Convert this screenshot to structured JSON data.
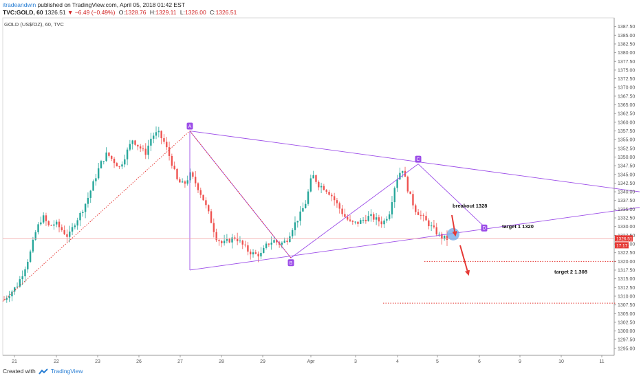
{
  "header": {
    "author": "itradeandwin",
    "published": "published on TradingView.com, April 05, 2018 01:42 EST",
    "symbol": "TVC:GOLD, 60",
    "last": "1326.51",
    "change": "▼ −6.49 (−0.49%)",
    "o_label": "O:",
    "o": "1328.76",
    "h_label": "H:",
    "h": "1329.11",
    "l_label": "L:",
    "l": "1326.00",
    "c_label": "C:",
    "c": "1326.51"
  },
  "legend": "GOLD (US$/OZ), 60, TVC",
  "footer": {
    "created": "Created with",
    "brand": "TradingView"
  },
  "colors": {
    "up": "#26a69a",
    "down": "#ef5350",
    "pattern": "#9c4de8",
    "target": "#e53935",
    "price": "#e53935"
  },
  "chart_data": {
    "type": "candlestick",
    "title": "GOLD (US$/OZ), 60, TVC",
    "y_axis": {
      "range": [
        1293,
        1390
      ],
      "ticks": [
        1295.0,
        1297.5,
        1300.0,
        1302.5,
        1305.0,
        1307.5,
        1310.0,
        1312.5,
        1315.0,
        1317.5,
        1320.0,
        1322.5,
        1325.0,
        1327.5,
        1330.0,
        1332.5,
        1335.0,
        1337.5,
        1340.0,
        1342.5,
        1345.0,
        1347.5,
        1350.0,
        1352.5,
        1355.0,
        1357.5,
        1360.0,
        1362.5,
        1365.0,
        1367.5,
        1370.0,
        1372.5,
        1375.0,
        1377.5,
        1380.0,
        1382.5,
        1385.0,
        1387.5
      ],
      "current_price": "1326.51",
      "countdown": "17:17"
    },
    "x_axis": {
      "ticks": [
        "21",
        "22",
        "23",
        "26",
        "27",
        "28",
        "29",
        "Apr",
        "3",
        "4",
        "5",
        "6",
        "9",
        "10",
        "11"
      ]
    },
    "pattern_points": [
      {
        "label": "A",
        "price": 1357.5
      },
      {
        "label": "B",
        "price": 1321.0
      },
      {
        "label": "C",
        "price": 1348.0
      },
      {
        "label": "D",
        "price": 1330.0
      }
    ],
    "annotations": [
      {
        "text": "breakout 1328",
        "price": 1328
      },
      {
        "text": "target 1 1320",
        "price": 1320
      },
      {
        "text": "target 2 1.308",
        "price": 1308
      }
    ],
    "price_path": [
      1309,
      1311,
      1313,
      1317,
      1322,
      1329,
      1333,
      1330,
      1331,
      1329,
      1327,
      1331,
      1334,
      1338,
      1343,
      1348,
      1351,
      1349,
      1347,
      1351,
      1355,
      1353,
      1351,
      1356,
      1357,
      1354,
      1349,
      1343,
      1342,
      1345,
      1342,
      1338,
      1333,
      1327,
      1325,
      1326,
      1327,
      1325,
      1323,
      1322,
      1322,
      1325,
      1326,
      1325,
      1326,
      1330,
      1333,
      1337,
      1345,
      1342,
      1341,
      1339,
      1336,
      1333,
      1331,
      1331,
      1332,
      1333,
      1332,
      1331,
      1334,
      1343,
      1347,
      1340,
      1335,
      1333,
      1331,
      1329,
      1327,
      1326.5
    ]
  }
}
